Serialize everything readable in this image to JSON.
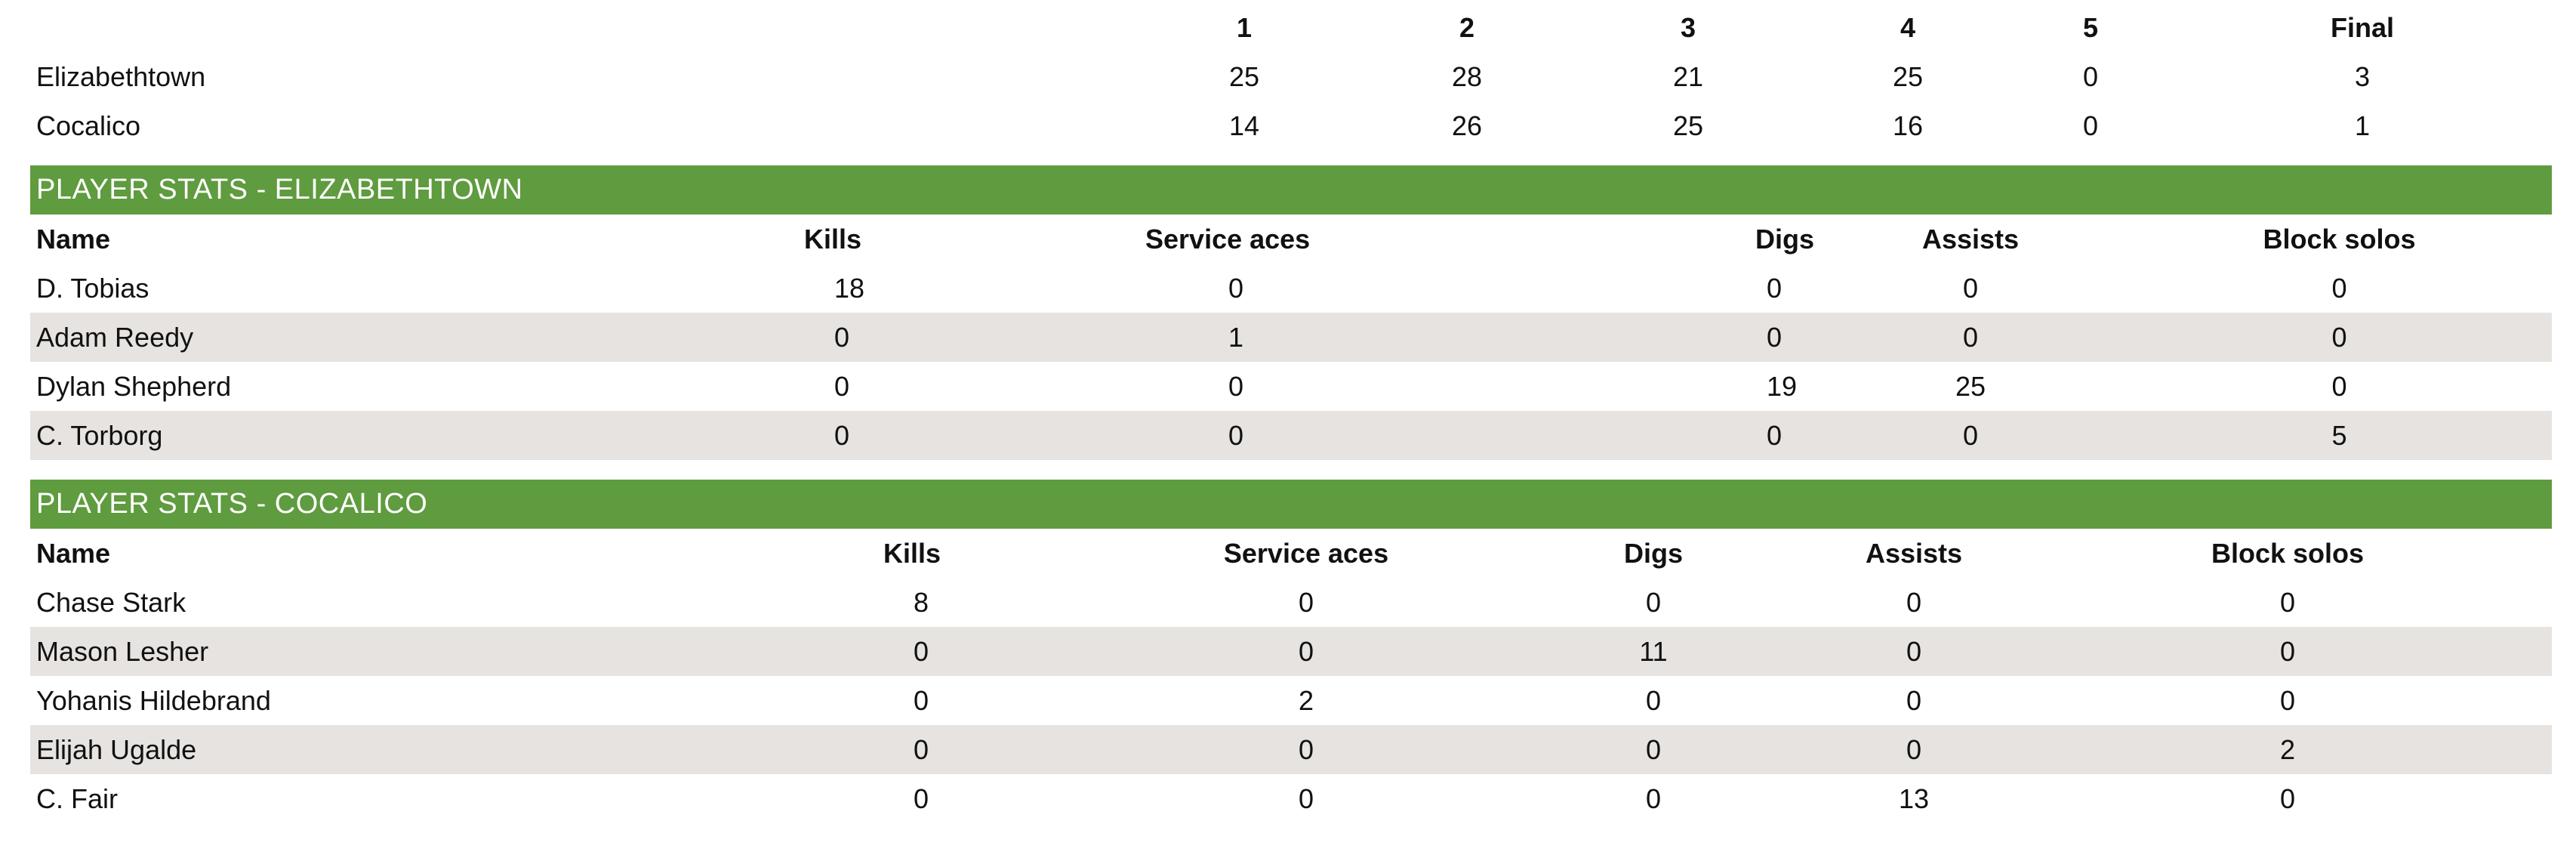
{
  "scoreboard": {
    "headers": [
      "",
      "1",
      "2",
      "3",
      "4",
      "5",
      "Final"
    ],
    "rows": [
      {
        "team": "Elizabethtown",
        "scores": [
          "25",
          "28",
          "21",
          "25",
          "0",
          "3"
        ]
      },
      {
        "team": "Cocalico",
        "scores": [
          "14",
          "26",
          "25",
          "16",
          "0",
          "1"
        ]
      }
    ]
  },
  "sections": [
    {
      "title": "PLAYER STATS - ELIZABETHTOWN",
      "headers": [
        "Name",
        "Kills",
        "Service aces",
        "Digs",
        "Assists",
        "Block solos"
      ],
      "rows": [
        [
          "D. Tobias",
          "18",
          "0",
          "0",
          "0",
          "0"
        ],
        [
          "Adam Reedy",
          "0",
          "1",
          "0",
          "0",
          "0"
        ],
        [
          "Dylan Shepherd",
          "0",
          "0",
          "19",
          "25",
          "0"
        ],
        [
          "C. Torborg",
          "0",
          "0",
          "0",
          "0",
          "5"
        ]
      ]
    },
    {
      "title": "PLAYER STATS - COCALICO",
      "headers": [
        "Name",
        "Kills",
        "Service aces",
        "Digs",
        "Assists",
        "Block solos"
      ],
      "rows": [
        [
          "Chase Stark",
          "8",
          "0",
          "0",
          "0",
          "0"
        ],
        [
          "Mason Lesher",
          "0",
          "0",
          "11",
          "0",
          "0"
        ],
        [
          "Yohanis Hildebrand",
          "0",
          "2",
          "0",
          "0",
          "0"
        ],
        [
          "Elijah Ugalde",
          "0",
          "0",
          "0",
          "0",
          "2"
        ],
        [
          "C. Fair",
          "0",
          "0",
          "0",
          "13",
          "0"
        ]
      ]
    }
  ],
  "colors": {
    "section_header_bg": "#5f9b3f",
    "alt_row_bg": "#e6e3e0"
  }
}
